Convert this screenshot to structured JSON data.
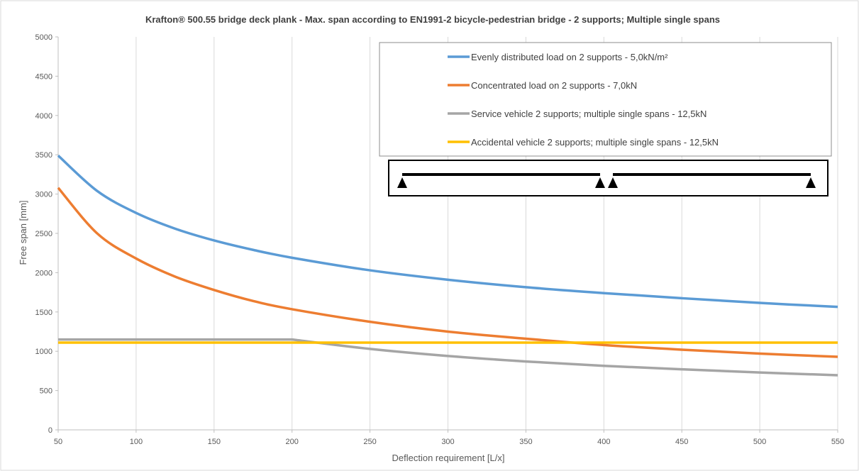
{
  "chart_data": {
    "type": "line",
    "title": "Krafton® 500.55 bridge deck plank  - Max. span according  to EN1991-2 bicycle-pedestrian bridge - 2 supports; Multiple single spans",
    "xlabel": "Deflection requirement [L/x]",
    "ylabel": "Free span [mm]",
    "xlim": [
      50,
      550
    ],
    "ylim": [
      0,
      5000
    ],
    "x_ticks": [
      50,
      100,
      150,
      200,
      250,
      300,
      350,
      400,
      450,
      500,
      550
    ],
    "y_ticks": [
      0,
      500,
      1000,
      1500,
      2000,
      2500,
      3000,
      3500,
      4000,
      4500,
      5000
    ],
    "grid": "vertical",
    "legend_position": "top-right",
    "series": [
      {
        "name": "Evenly distributed load on 2 supports - 5,0kN/m²",
        "color": "#5b9bd5",
        "x": [
          50,
          75,
          100,
          125,
          150,
          175,
          200,
          250,
          300,
          350,
          400,
          450,
          500,
          550
        ],
        "y": [
          3490,
          3040,
          2760,
          2560,
          2410,
          2290,
          2190,
          2030,
          1910,
          1815,
          1740,
          1675,
          1615,
          1565
        ]
      },
      {
        "name": "Concentrated load on 2 supports - 7,0kN",
        "color": "#ed7d31",
        "x": [
          50,
          75,
          100,
          125,
          150,
          175,
          200,
          250,
          300,
          350,
          400,
          450,
          500,
          550
        ],
        "y": [
          3080,
          2500,
          2180,
          1950,
          1780,
          1640,
          1535,
          1375,
          1250,
          1160,
          1080,
          1020,
          970,
          930
        ]
      },
      {
        "name": "Service vehicle 2 supports; multiple single spans - 12,5kN",
        "color": "#a5a5a5",
        "x": [
          50,
          100,
          150,
          200,
          250,
          300,
          350,
          400,
          450,
          500,
          550
        ],
        "y": [
          1150,
          1150,
          1150,
          1150,
          1030,
          940,
          870,
          815,
          770,
          730,
          695
        ]
      },
      {
        "name": "Accidental vehicle 2 supports; multiple single spans - 12,5kN",
        "color": "#ffc000",
        "x": [
          50,
          550
        ],
        "y": [
          1110,
          1110
        ]
      }
    ]
  }
}
